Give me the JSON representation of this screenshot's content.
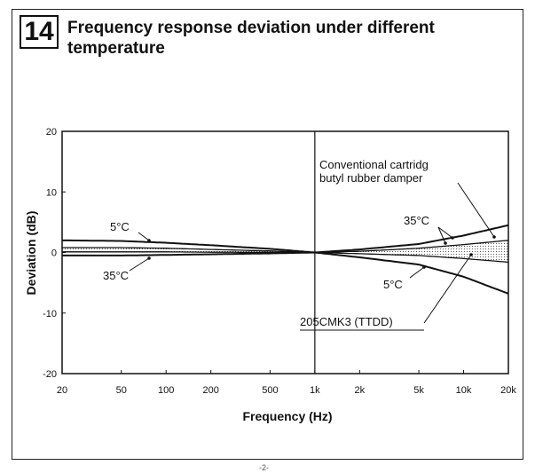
{
  "figure": {
    "number": "14",
    "title_line1": "Frequency response deviation under different",
    "title_line2": "temperature",
    "bottom_mark": "-2-"
  },
  "chart_data": {
    "type": "line",
    "title": "Frequency response deviation under different temperature",
    "xlabel": "Frequency (Hz)",
    "ylabel": "Deviation (dB)",
    "xscale": "log",
    "xlim": [
      20,
      20000
    ],
    "ylim": [
      -20,
      20
    ],
    "grid": false,
    "xticks": [
      {
        "value": 20,
        "label": "20"
      },
      {
        "value": 50,
        "label": "50"
      },
      {
        "value": 100,
        "label": "100"
      },
      {
        "value": 200,
        "label": "200"
      },
      {
        "value": 500,
        "label": "500"
      },
      {
        "value": 1000,
        "label": "1k"
      },
      {
        "value": 2000,
        "label": "2k"
      },
      {
        "value": 5000,
        "label": "5k"
      },
      {
        "value": 10000,
        "label": "10k"
      },
      {
        "value": 20000,
        "label": "20k"
      }
    ],
    "yticks": [
      {
        "value": 20,
        "label": "20"
      },
      {
        "value": 10,
        "label": "10"
      },
      {
        "value": 0,
        "label": "0"
      },
      {
        "value": -10,
        "label": "-10"
      },
      {
        "value": -20,
        "label": "-20"
      }
    ],
    "reference_line_x": 1000,
    "series": [
      {
        "name": "",
        "values": [
          [
            20,
            2.0
          ],
          [
            50,
            1.9
          ],
          [
            100,
            1.6
          ],
          [
            200,
            1.2
          ],
          [
            500,
            0.6
          ],
          [
            1000,
            0
          ],
          [
            2000,
            0.5
          ],
          [
            5000,
            1.4
          ],
          [
            10000,
            2.8
          ],
          [
            20000,
            4.5
          ]
        ]
      },
      {
        "name": "",
        "values": [
          [
            20,
            -0.5
          ],
          [
            50,
            -0.5
          ],
          [
            100,
            -0.4
          ],
          [
            200,
            -0.3
          ],
          [
            500,
            -0.15
          ],
          [
            1000,
            0
          ],
          [
            2000,
            -0.8
          ],
          [
            5000,
            -2.0
          ],
          [
            10000,
            -4.0
          ],
          [
            20000,
            -6.8
          ]
        ]
      },
      {
        "name": "",
        "values": [
          [
            20,
            0.8
          ],
          [
            50,
            0.8
          ],
          [
            100,
            0.7
          ],
          [
            200,
            0.5
          ],
          [
            500,
            0.25
          ],
          [
            1000,
            0
          ],
          [
            2000,
            0.2
          ],
          [
            5000,
            0.7
          ],
          [
            10000,
            1.3
          ],
          [
            20000,
            2.0
          ]
        ]
      },
      {
        "name": "",
        "values": [
          [
            20,
            0.1
          ],
          [
            50,
            0.1
          ],
          [
            100,
            0.1
          ],
          [
            200,
            0.05
          ],
          [
            500,
            0.02
          ],
          [
            1000,
            0
          ],
          [
            2000,
            -0.2
          ],
          [
            5000,
            -0.5
          ],
          [
            10000,
            -1.0
          ],
          [
            20000,
            -1.6
          ]
        ]
      }
    ],
    "annotations": [
      {
        "text": "5°C"
      },
      {
        "text": "35°C"
      },
      {
        "text": "35°C"
      },
      {
        "text": "5°C"
      },
      {
        "text": "Conventional cartridg"
      },
      {
        "text": "butyl rubber damper"
      },
      {
        "text": "205CMK3 (TTDD)"
      }
    ]
  }
}
